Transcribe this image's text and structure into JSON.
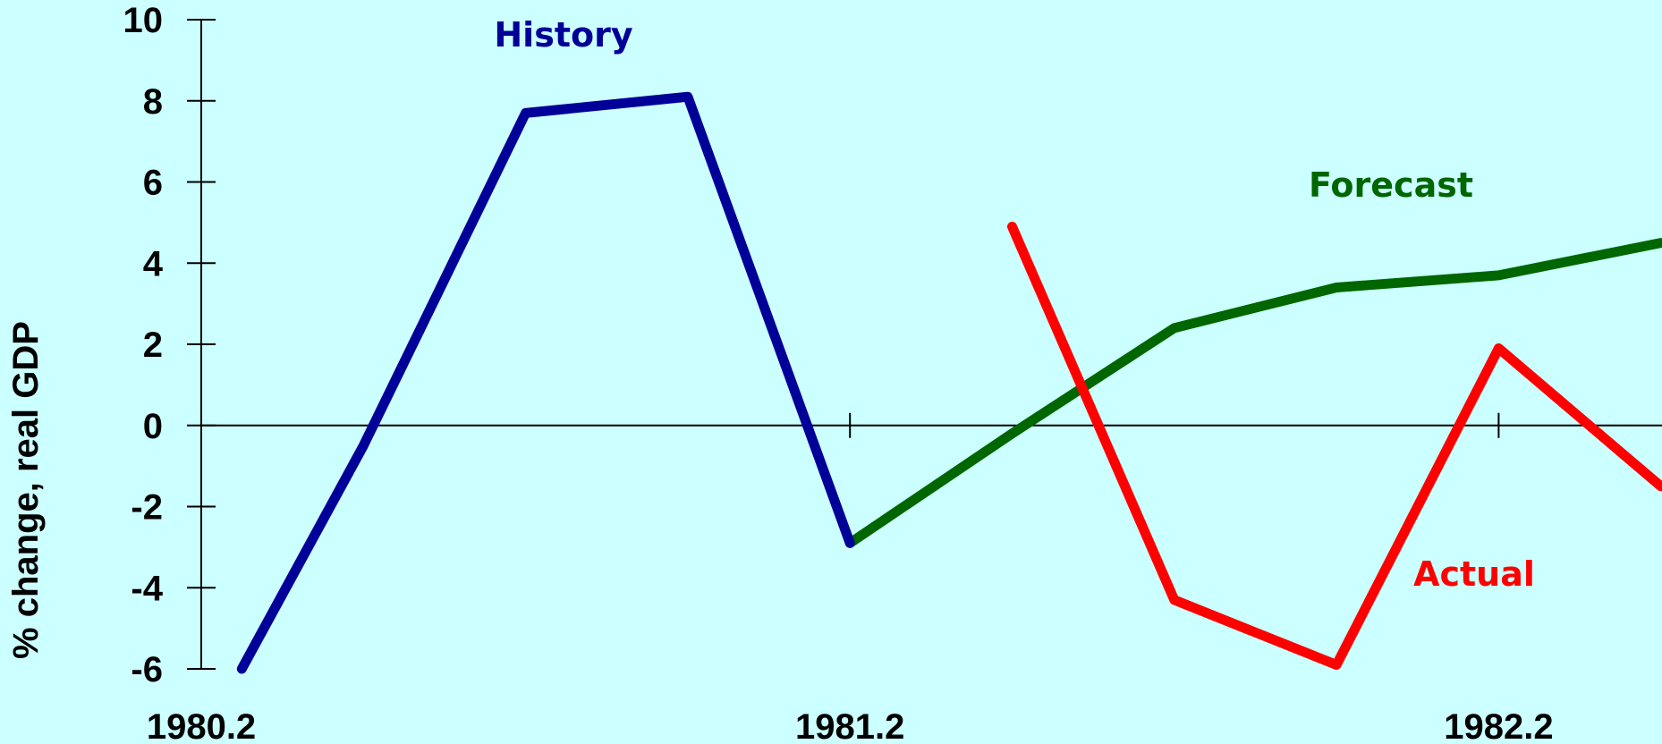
{
  "chart_data": {
    "type": "line",
    "ylabel": "% change, real GDP",
    "ylim": [
      -6,
      10
    ],
    "y_ticks": [
      10,
      8,
      6,
      4,
      2,
      0,
      -2,
      -4,
      -6
    ],
    "x_tick_labels": [
      {
        "label": "1980.2",
        "x": 0
      },
      {
        "label": "1981.2",
        "x": 4
      },
      {
        "label": "1982.2",
        "x": 8
      }
    ],
    "x_major_ticks": [
      4,
      8
    ],
    "xlim": [
      -0.1,
      9.0
    ],
    "grid": false,
    "series": [
      {
        "name": "History",
        "color": "#000099",
        "points": [
          [
            0.25,
            -6.0
          ],
          [
            1,
            -0.5
          ],
          [
            2,
            7.7
          ],
          [
            3,
            8.1
          ],
          [
            4,
            -2.9
          ]
        ]
      },
      {
        "name": "Forecast",
        "color": "#006600",
        "points": [
          [
            4,
            -2.9
          ],
          [
            5,
            -0.2
          ],
          [
            6,
            2.4
          ],
          [
            7,
            3.4
          ],
          [
            8,
            3.7
          ],
          [
            9,
            4.5
          ]
        ]
      },
      {
        "name": "Actual",
        "color": "#FF0000",
        "points": [
          [
            5,
            4.9
          ],
          [
            6,
            -4.3
          ],
          [
            7,
            -5.9
          ],
          [
            8,
            1.9
          ],
          [
            9,
            -1.5
          ]
        ]
      }
    ]
  }
}
